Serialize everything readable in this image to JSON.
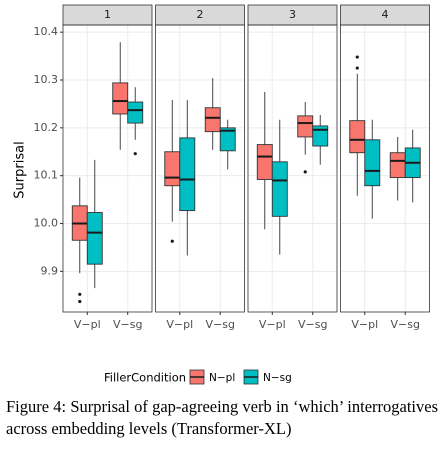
{
  "chart_data": {
    "type": "boxplot",
    "ylabel": "Surprisal",
    "legend_title": "FillerCondition",
    "legend_position": "bottom",
    "grid": true,
    "facets": [
      "1",
      "2",
      "3",
      "4"
    ],
    "categories": [
      "V−pl",
      "V−sg"
    ],
    "ylim": [
      9.815,
      10.415
    ],
    "yticks": [
      9.9,
      {
        "value": 10,
        "label": "10.0"
      },
      10.1,
      10.2,
      10.3,
      10.4
    ],
    "series": [
      {
        "name": "N−pl",
        "color": "#F8766D",
        "boxes": [
          [
            {
              "low": 9.896,
              "q1": 9.965,
              "median": 10.0,
              "q3": 10.037,
              "high": 10.096,
              "outliers": [
                9.852,
                9.837
              ]
            },
            {
              "low": 10.154,
              "q1": 10.229,
              "median": 10.256,
              "q3": 10.294,
              "high": 10.379,
              "outliers": []
            }
          ],
          [
            {
              "low": 10.004,
              "q1": 10.079,
              "median": 10.096,
              "q3": 10.15,
              "high": 10.258,
              "outliers": [
                9.963
              ]
            },
            {
              "low": 10.154,
              "q1": 10.192,
              "median": 10.221,
              "q3": 10.242,
              "high": 10.304,
              "outliers": []
            }
          ],
          [
            {
              "low": 9.988,
              "q1": 10.092,
              "median": 10.14,
              "q3": 10.165,
              "high": 10.275,
              "outliers": []
            },
            {
              "low": 10.144,
              "q1": 10.181,
              "median": 10.21,
              "q3": 10.225,
              "high": 10.254,
              "outliers": [
                10.108
              ]
            }
          ],
          [
            {
              "low": 10.058,
              "q1": 10.148,
              "median": 10.175,
              "q3": 10.215,
              "high": 10.313,
              "outliers": [
                10.348,
                10.325
              ]
            },
            {
              "low": 10.048,
              "q1": 10.096,
              "median": 10.131,
              "q3": 10.148,
              "high": 10.181,
              "outliers": []
            }
          ]
        ]
      },
      {
        "name": "N−sg",
        "color": "#00BFC4",
        "boxes": [
          [
            {
              "low": 9.865,
              "q1": 9.915,
              "median": 9.981,
              "q3": 10.023,
              "high": 10.133,
              "outliers": []
            },
            {
              "low": 10.175,
              "q1": 10.21,
              "median": 10.237,
              "q3": 10.254,
              "high": 10.285,
              "outliers": [
                10.146
              ]
            }
          ],
          [
            {
              "low": 9.933,
              "q1": 10.027,
              "median": 10.092,
              "q3": 10.179,
              "high": 10.258,
              "outliers": []
            },
            {
              "low": 10.113,
              "q1": 10.152,
              "median": 10.194,
              "q3": 10.2,
              "high": 10.217,
              "outliers": []
            }
          ],
          [
            {
              "low": 9.935,
              "q1": 10.015,
              "median": 10.09,
              "q3": 10.129,
              "high": 10.217,
              "outliers": []
            },
            {
              "low": 10.123,
              "q1": 10.162,
              "median": 10.196,
              "q3": 10.204,
              "high": 10.227,
              "outliers": []
            }
          ],
          [
            {
              "low": 10.01,
              "q1": 10.079,
              "median": 10.11,
              "q3": 10.175,
              "high": 10.217,
              "outliers": []
            },
            {
              "low": 10.044,
              "q1": 10.096,
              "median": 10.127,
              "q3": 10.158,
              "high": 10.196,
              "outliers": []
            }
          ]
        ]
      }
    ]
  },
  "caption": "Figure 4: Surprisal of gap-agreeing verb in ‘which’ interrogatives across embedding levels (Transformer-XL)"
}
